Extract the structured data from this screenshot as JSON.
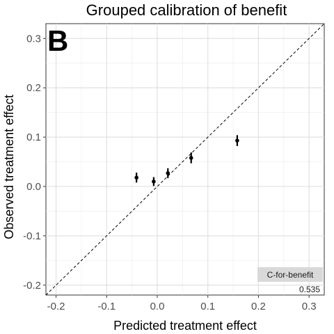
{
  "chart_data": {
    "type": "scatter",
    "title": "Grouped calibration of benefit",
    "panel_label": "B",
    "xlabel": "Predicted treatment effect",
    "ylabel": "Observed treatment effect",
    "xlim": [
      -0.22,
      0.33
    ],
    "ylim": [
      -0.22,
      0.33
    ],
    "x_ticks": [
      -0.2,
      -0.1,
      0.0,
      0.1,
      0.2,
      0.3
    ],
    "x_tick_labels": [
      "-0.2",
      "-0.1",
      "0.0",
      "0.1",
      "0.2",
      "0.3"
    ],
    "y_ticks": [
      -0.2,
      -0.1,
      0.0,
      0.1,
      0.2,
      0.3
    ],
    "y_tick_labels": [
      "-0.2",
      "-0.1",
      "0.0",
      "0.1",
      "0.2",
      "0.3"
    ],
    "grid": true,
    "reference_line": "y = x (dashed)",
    "points": [
      {
        "x": -0.041,
        "y": 0.018,
        "ymin": 0.008,
        "ymax": 0.028
      },
      {
        "x": -0.007,
        "y": 0.01,
        "ymin": 0.001,
        "ymax": 0.019
      },
      {
        "x": 0.021,
        "y": 0.027,
        "ymin": 0.017,
        "ymax": 0.037
      },
      {
        "x": 0.067,
        "y": 0.058,
        "ymin": 0.047,
        "ymax": 0.069
      },
      {
        "x": 0.158,
        "y": 0.093,
        "ymin": 0.082,
        "ymax": 0.104
      }
    ],
    "annotation": {
      "title": "C-for-benefit",
      "value": "0.535",
      "position": "bottom-right"
    },
    "colors": {
      "points": "#000000",
      "grid": "#ebebeb",
      "legend_bg": "#d9d9d9"
    }
  }
}
